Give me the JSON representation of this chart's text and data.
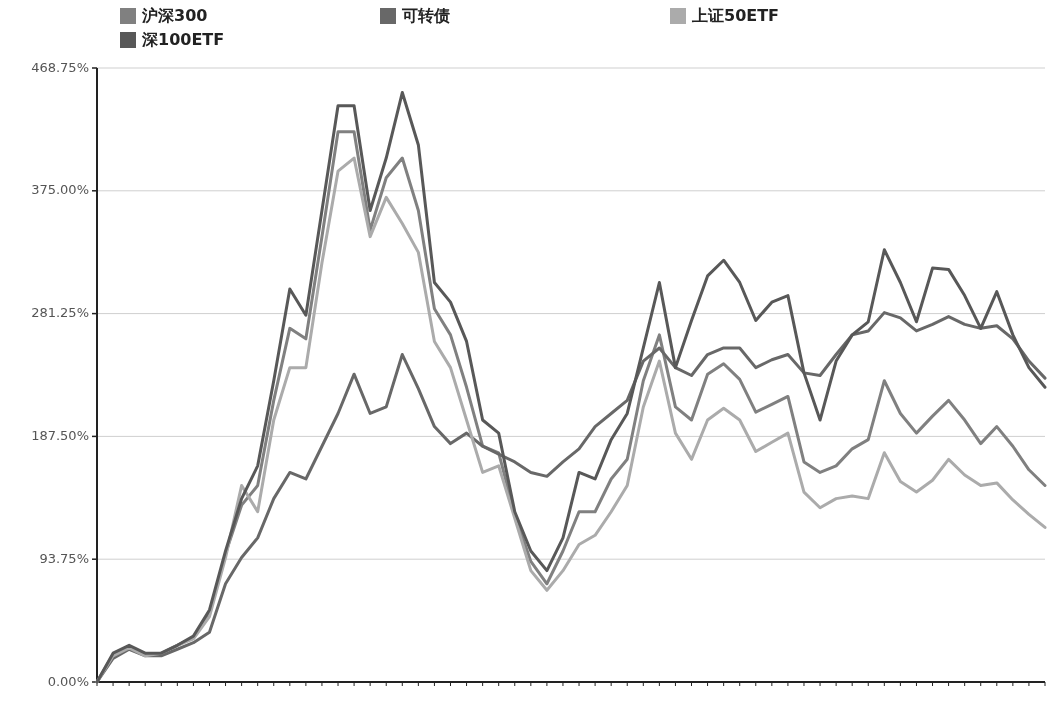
{
  "chart_data": {
    "type": "line",
    "categories": [
      null,
      null,
      null,
      null,
      null,
      null,
      null,
      null,
      null,
      null,
      null,
      null,
      null,
      null,
      null,
      null,
      null,
      null,
      null,
      null,
      null,
      null,
      null,
      null,
      null,
      null,
      null,
      null,
      null,
      null,
      null,
      null,
      null,
      null,
      null,
      null,
      null,
      null,
      null,
      null,
      null,
      null,
      null,
      null,
      null,
      null,
      null,
      null,
      null,
      null,
      null,
      null,
      null,
      null,
      null,
      null,
      null,
      null,
      null,
      null
    ],
    "series": [
      {
        "name": "沪深300",
        "color": "#808080",
        "values": [
          0,
          21,
          27,
          21,
          22,
          28,
          34,
          52,
          98,
          135,
          150,
          215,
          270,
          262,
          340,
          420,
          420,
          345,
          385,
          400,
          360,
          285,
          265,
          225,
          180,
          175,
          128,
          92,
          75,
          100,
          130,
          130,
          155,
          170,
          230,
          265,
          210,
          200,
          235,
          243,
          231,
          206,
          212,
          218,
          168,
          160,
          165,
          178,
          185,
          230,
          205,
          190,
          203,
          215,
          200,
          182,
          195,
          180,
          162,
          150
        ]
      },
      {
        "name": "可转债",
        "color": "#686868",
        "values": [
          0,
          18,
          25,
          20,
          20,
          25,
          30,
          38,
          75,
          95,
          110,
          140,
          160,
          155,
          180,
          205,
          235,
          205,
          210,
          250,
          224,
          195,
          182,
          190,
          180,
          174,
          168,
          160,
          157,
          168,
          178,
          195,
          205,
          215,
          245,
          255,
          240,
          234,
          250,
          255,
          255,
          240,
          246,
          250,
          236,
          234,
          250,
          265,
          268,
          282,
          278,
          268,
          273,
          279,
          273,
          270,
          272,
          262,
          245,
          232
        ]
      },
      {
        "name": "上证50ETF",
        "color": "#ababab",
        "values": [
          0,
          20,
          26,
          20,
          22,
          28,
          33,
          50,
          95,
          150,
          130,
          200,
          240,
          240,
          320,
          390,
          400,
          340,
          370,
          350,
          328,
          260,
          240,
          200,
          160,
          165,
          125,
          85,
          70,
          85,
          105,
          112,
          130,
          150,
          210,
          245,
          190,
          170,
          200,
          209,
          200,
          176,
          183,
          190,
          145,
          133,
          140,
          142,
          140,
          175,
          153,
          145,
          154,
          170,
          158,
          150,
          152,
          139,
          128,
          118
        ]
      },
      {
        "name": "深100ETF",
        "color": "#585858",
        "values": [
          0,
          22,
          28,
          22,
          22,
          28,
          35,
          55,
          100,
          140,
          165,
          230,
          300,
          280,
          360,
          440,
          440,
          360,
          400,
          450,
          410,
          305,
          290,
          260,
          200,
          190,
          130,
          100,
          85,
          110,
          160,
          155,
          185,
          205,
          255,
          305,
          240,
          276,
          310,
          322,
          305,
          276,
          290,
          295,
          236,
          200,
          245,
          265,
          275,
          330,
          305,
          275,
          316,
          315,
          295,
          270,
          298,
          265,
          240,
          225
        ]
      }
    ],
    "ylim": [
      0,
      468.75
    ],
    "yticks": [
      {
        "value": 0,
        "label": "0.00%"
      },
      {
        "value": 93.75,
        "label": "93.75%"
      },
      {
        "value": 187.5,
        "label": "187.50%"
      },
      {
        "value": 281.25,
        "label": "281.25%"
      },
      {
        "value": 375,
        "label": "375.00%"
      },
      {
        "value": 468.75,
        "label": "468.75%"
      }
    ],
    "grid": "y",
    "legend": "top",
    "line_style": "solid"
  }
}
